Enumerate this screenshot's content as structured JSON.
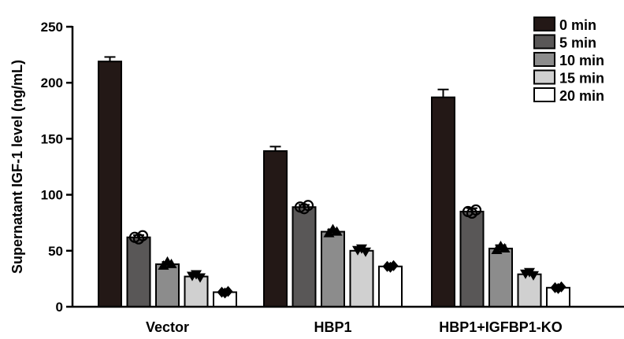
{
  "chart_data": {
    "type": "bar",
    "ylabel": "Supernatant IGF-1 level (ng/mL)",
    "xlabel": "",
    "ylim": [
      0,
      250
    ],
    "yticks": [
      0,
      50,
      100,
      150,
      200,
      250
    ],
    "categories": [
      "Vector",
      "HBP1",
      "HBP1+IGFBP1-KO"
    ],
    "legend_position": "top-right",
    "series": [
      {
        "name": "0 min",
        "color": "#231816",
        "marker": "none",
        "values": [
          219,
          139,
          187
        ],
        "errors": [
          4,
          4,
          7
        ]
      },
      {
        "name": "5 min",
        "color": "#595757",
        "marker": "circle",
        "values": [
          62,
          89,
          85
        ],
        "errors": [
          2,
          2,
          3
        ]
      },
      {
        "name": "10 min",
        "color": "#8c8c8c",
        "marker": "triangle-up",
        "values": [
          38,
          67,
          52
        ],
        "errors": [
          2,
          2,
          3
        ]
      },
      {
        "name": "15 min",
        "color": "#d0d0d0",
        "marker": "triangle-down",
        "values": [
          27,
          50,
          29
        ],
        "errors": [
          2,
          2,
          2
        ]
      },
      {
        "name": "20 min",
        "color": "#ffffff",
        "marker": "diamond",
        "values": [
          13,
          36,
          17
        ],
        "errors": [
          1,
          2,
          1
        ]
      }
    ]
  }
}
